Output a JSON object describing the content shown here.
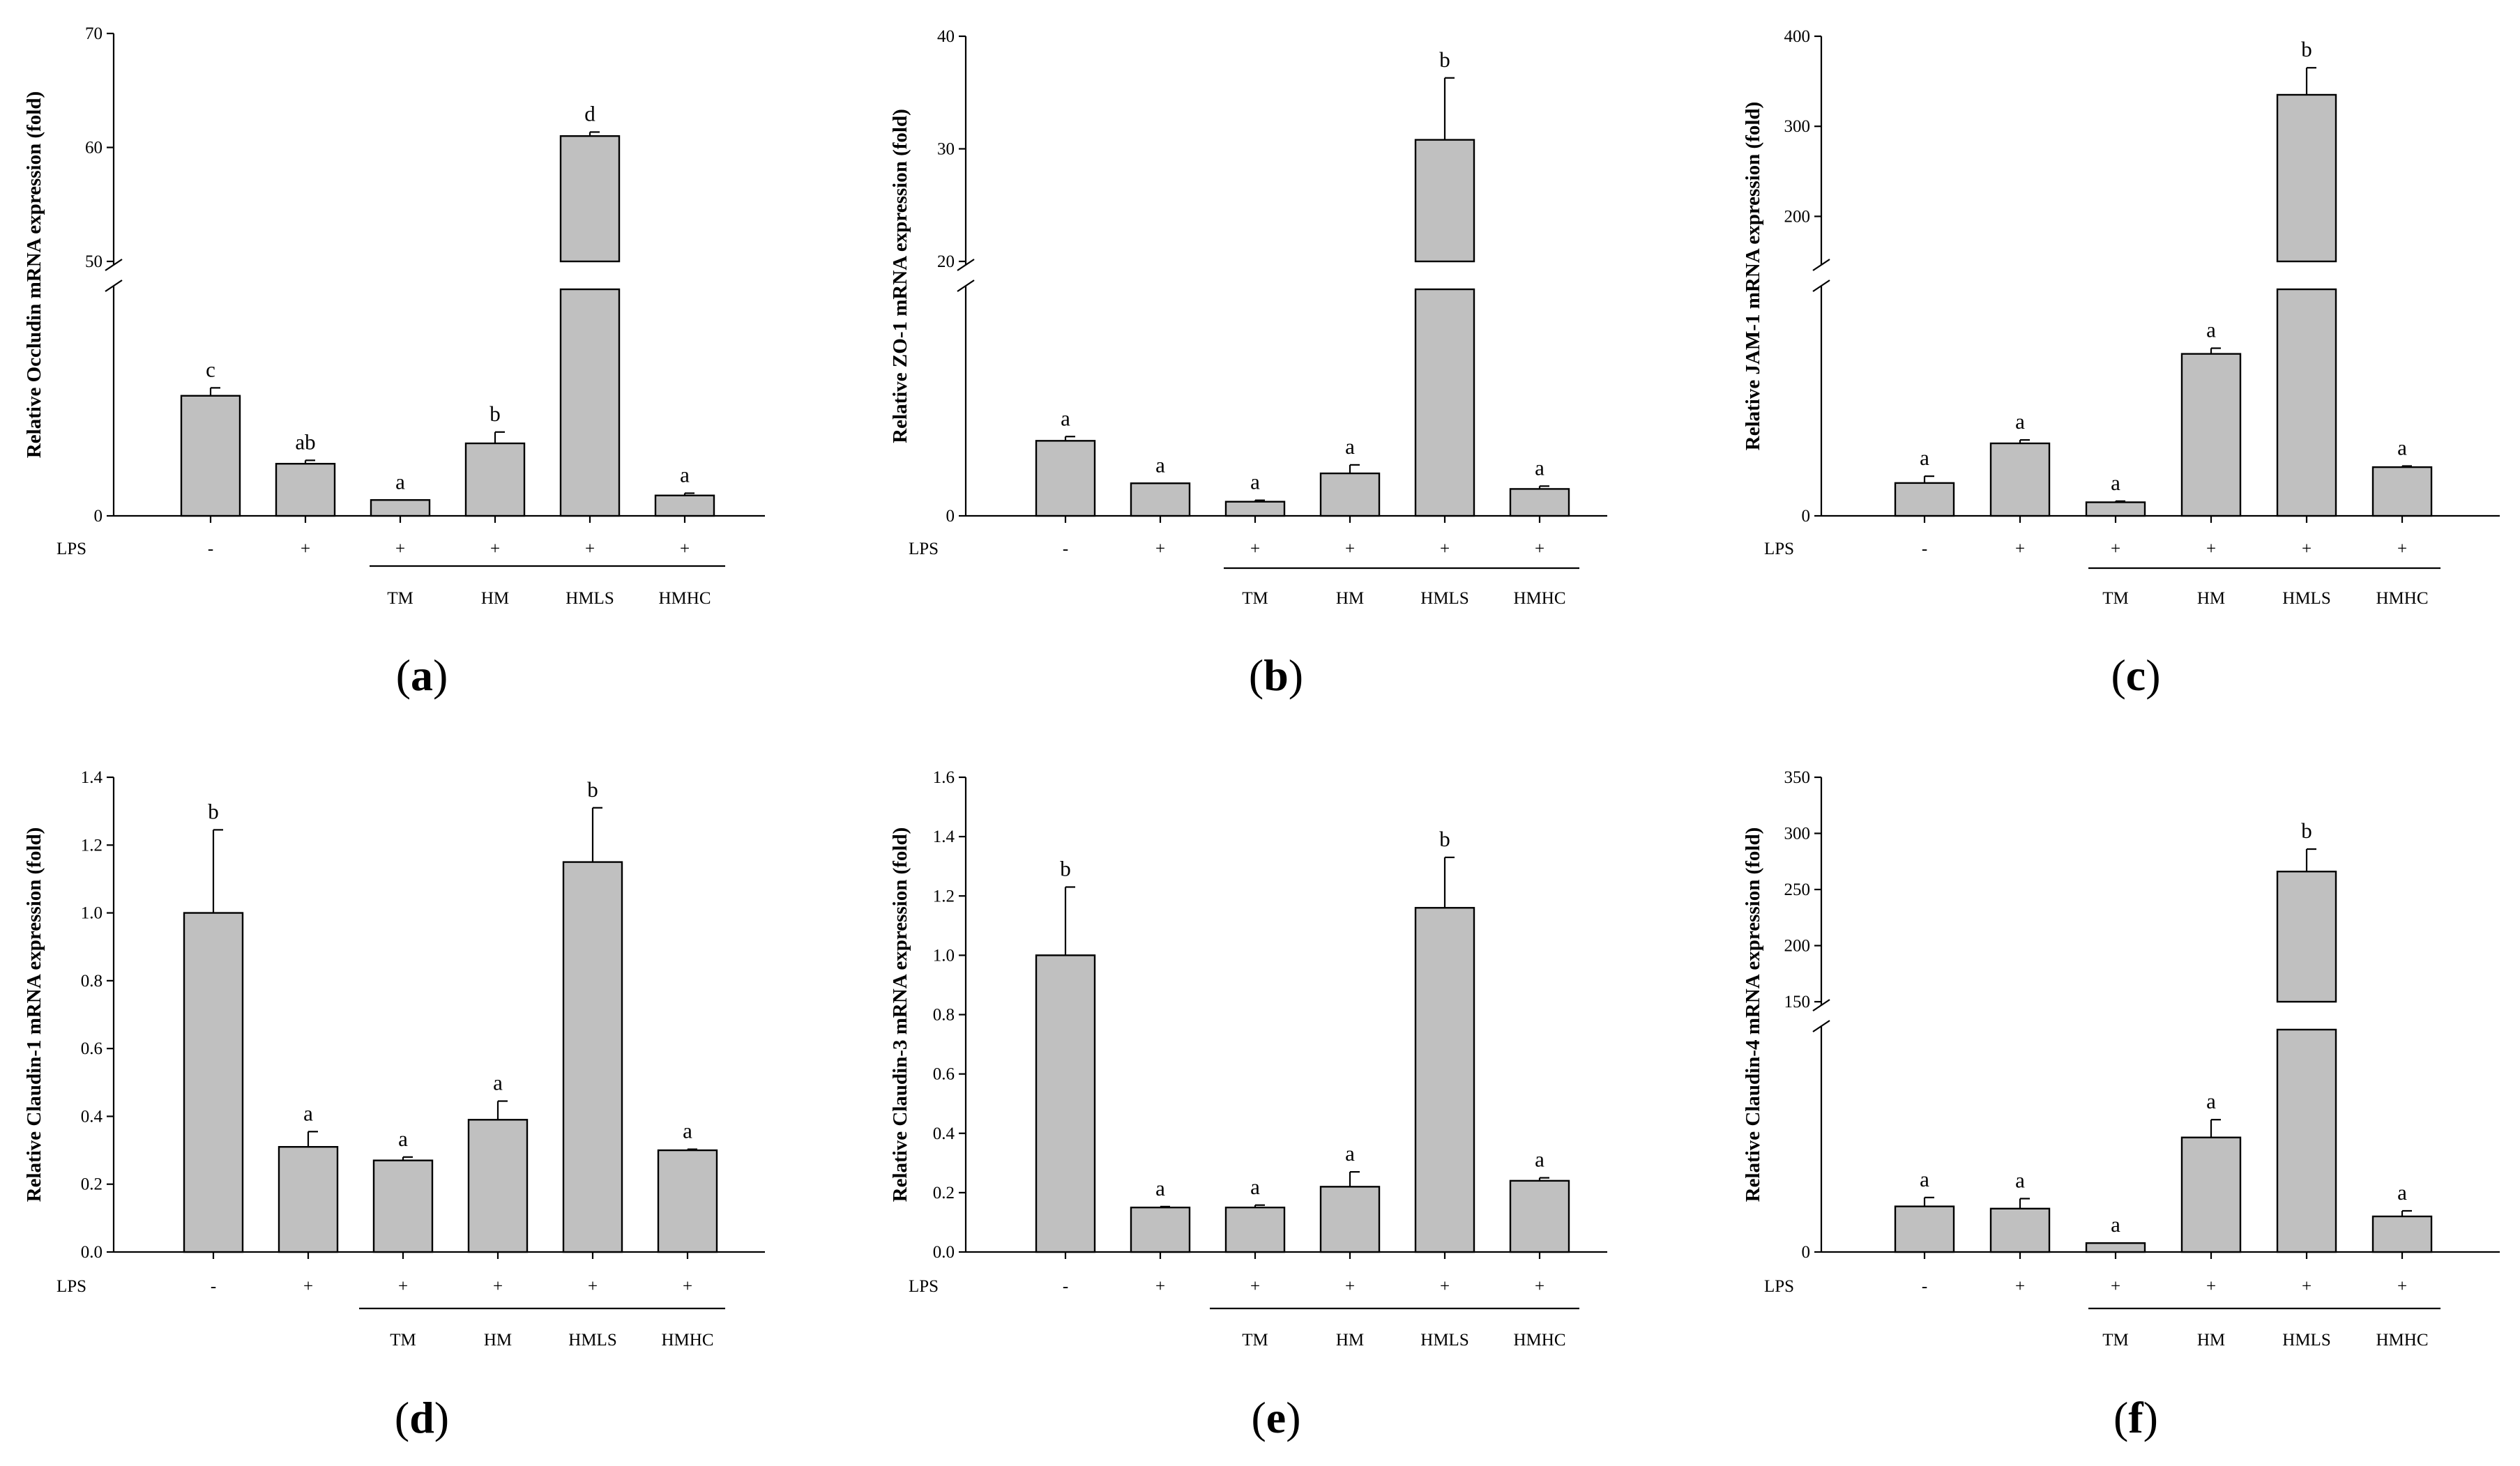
{
  "figure": {
    "x_axis_row_label": "LPS",
    "lps_values": [
      "-",
      "+",
      "+",
      "+",
      "+",
      "+"
    ],
    "group_labels": [
      "",
      "",
      "TM",
      "HM",
      "HMLS",
      "HMHC"
    ]
  },
  "chart_data": [
    {
      "type": "bar",
      "panel": "(a)",
      "panel_letter": "a",
      "ylabel": "Relative Occludin mRNA expression (fold)",
      "ylim": [
        0,
        70
      ],
      "axis_break": [
        10,
        50
      ],
      "yticks": [
        0,
        50,
        60,
        70
      ],
      "categories": [
        "-",
        "+",
        "TM",
        "HM",
        "HMLS",
        "HMHC"
      ],
      "values": [
        5.3,
        2.3,
        0.7,
        3.2,
        61.0,
        0.9
      ],
      "errors": [
        0.35,
        0.15,
        0,
        0.5,
        0.35,
        0.1
      ],
      "significance": [
        "c",
        "ab",
        "a",
        "b",
        "d",
        "a"
      ]
    },
    {
      "type": "bar",
      "panel": "(b)",
      "panel_letter": "b",
      "ylabel": "Relative ZO-1 mRNA expression (fold)",
      "ylim": [
        0,
        40
      ],
      "axis_break": [
        8,
        20
      ],
      "yticks": [
        0,
        20,
        30,
        40
      ],
      "categories": [
        "-",
        "+",
        "TM",
        "HM",
        "HMLS",
        "HMHC"
      ],
      "values": [
        2.65,
        1.15,
        0.5,
        1.5,
        30.8,
        0.95
      ],
      "errors": [
        0.15,
        0,
        0.05,
        0.3,
        5.5,
        0.1
      ],
      "significance": [
        "a",
        "a",
        "a",
        "a",
        "b",
        "a"
      ]
    },
    {
      "type": "bar",
      "panel": "(c)",
      "panel_letter": "c",
      "ylabel": "Relative JAM-1 mRNA expression (fold)",
      "ylim": [
        0,
        400
      ],
      "axis_break": [
        100,
        150
      ],
      "yticks": [
        0,
        200,
        300,
        400
      ],
      "categories": [
        "-",
        "+",
        "TM",
        "HM",
        "HMLS",
        "HMHC"
      ],
      "values": [
        14.5,
        32.0,
        6.0,
        71.5,
        335.0,
        21.5
      ],
      "errors": [
        3.0,
        1.5,
        0.5,
        2.5,
        30.0,
        0.5
      ],
      "significance": [
        "a",
        "a",
        "a",
        "a",
        "b",
        "a"
      ]
    },
    {
      "type": "bar",
      "panel": "(d)",
      "panel_letter": "d",
      "ylabel": "Relative Claudin-1 mRNA expression (fold)",
      "ylim": [
        0,
        1.4
      ],
      "axis_break": null,
      "yticks": [
        "0.0",
        "0.2",
        "0.4",
        "0.6",
        "0.8",
        "1.0",
        "1.2",
        "1.4"
      ],
      "categories": [
        "-",
        "+",
        "TM",
        "HM",
        "HMLS",
        "HMHC"
      ],
      "values": [
        1.0,
        0.31,
        0.27,
        0.39,
        1.15,
        0.3
      ],
      "errors": [
        0.245,
        0.045,
        0.01,
        0.055,
        0.16,
        0.003
      ],
      "significance": [
        "b",
        "a",
        "a",
        "a",
        "b",
        "a"
      ]
    },
    {
      "type": "bar",
      "panel": "(e)",
      "panel_letter": "e",
      "ylabel": "Relative Claudin-3 mRNA expression (fold)",
      "ylim": [
        0,
        1.6
      ],
      "axis_break": null,
      "yticks": [
        "0.0",
        "0.2",
        "0.4",
        "0.6",
        "0.8",
        "1.0",
        "1.2",
        "1.4",
        "1.6"
      ],
      "categories": [
        "-",
        "+",
        "TM",
        "HM",
        "HMLS",
        "HMHC"
      ],
      "values": [
        1.0,
        0.15,
        0.15,
        0.22,
        1.16,
        0.24
      ],
      "errors": [
        0.23,
        0.003,
        0.008,
        0.05,
        0.17,
        0.01
      ],
      "significance": [
        "b",
        "a",
        "a",
        "a",
        "b",
        "a"
      ]
    },
    {
      "type": "bar",
      "panel": "(f)",
      "panel_letter": "f",
      "ylabel": "Relative Claudin-4 mRNA expression (fold)",
      "ylim": [
        0,
        350
      ],
      "axis_break": [
        100,
        150
      ],
      "yticks": [
        0,
        150,
        200,
        250,
        300,
        350
      ],
      "categories": [
        "-",
        "+",
        "TM",
        "HM",
        "HMLS",
        "HMHC"
      ],
      "values": [
        20.5,
        19.5,
        4.0,
        51.5,
        266.0,
        16.0
      ],
      "errors": [
        4.0,
        4.5,
        0,
        8.0,
        20.0,
        2.5
      ],
      "significance": [
        "a",
        "a",
        "a",
        "a",
        "b",
        "a"
      ]
    }
  ]
}
